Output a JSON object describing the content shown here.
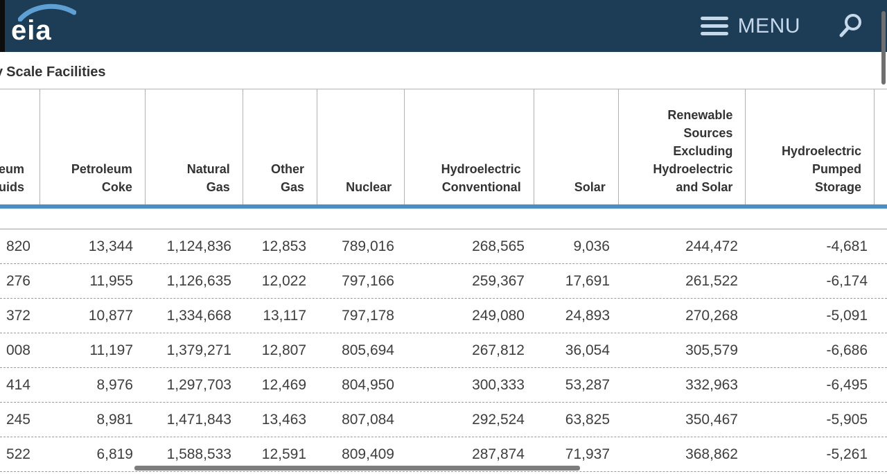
{
  "topbar": {
    "logo_text": "eia",
    "menu_label": "MENU"
  },
  "page": {
    "title_prefix": "y",
    "title_text": "Scale Facilities"
  },
  "table": {
    "columns": [
      {
        "id": "petroleum-liquids-partial",
        "label": "eum\nuids"
      },
      {
        "id": "petroleum-coke",
        "label": "Petroleum\nCoke"
      },
      {
        "id": "natural-gas",
        "label": "Natural\nGas"
      },
      {
        "id": "other-gas",
        "label": "Other\nGas"
      },
      {
        "id": "nuclear",
        "label": "Nuclear"
      },
      {
        "id": "hydroelectric-conventional",
        "label": "Hydroelectric\nConventional"
      },
      {
        "id": "solar",
        "label": "Solar"
      },
      {
        "id": "renewable-excluding-hydro-solar",
        "label": "Renewable\nSources\nExcluding\nHydroelectric\nand Solar"
      },
      {
        "id": "hydroelectric-pumped-storage",
        "label": "Hydroelectric\nPumped\nStorage"
      }
    ],
    "rows": [
      [
        "820",
        "13,344",
        "1,124,836",
        "12,853",
        "789,016",
        "268,565",
        "9,036",
        "244,472",
        "-4,681"
      ],
      [
        "276",
        "11,955",
        "1,126,635",
        "12,022",
        "797,166",
        "259,367",
        "17,691",
        "261,522",
        "-6,174"
      ],
      [
        "372",
        "10,877",
        "1,334,668",
        "13,117",
        "797,178",
        "249,080",
        "24,893",
        "270,268",
        "-5,091"
      ],
      [
        "008",
        "11,197",
        "1,379,271",
        "12,807",
        "805,694",
        "267,812",
        "36,054",
        "305,579",
        "-6,686"
      ],
      [
        "414",
        "8,976",
        "1,297,703",
        "12,469",
        "804,950",
        "300,333",
        "53,287",
        "332,963",
        "-6,495"
      ],
      [
        "245",
        "8,981",
        "1,471,843",
        "13,463",
        "807,084",
        "292,524",
        "63,825",
        "350,467",
        "-5,905"
      ],
      [
        "522",
        "6,819",
        "1,588,533",
        "12,591",
        "809,409",
        "287,874",
        "71,937",
        "368,862",
        "-5,261"
      ]
    ]
  },
  "colors": {
    "header_navy": "#1d3c55",
    "logo_blue": "#5e9fd4",
    "menu_text": "#c5d9eb",
    "accent_blue": "#4a8ec5"
  }
}
